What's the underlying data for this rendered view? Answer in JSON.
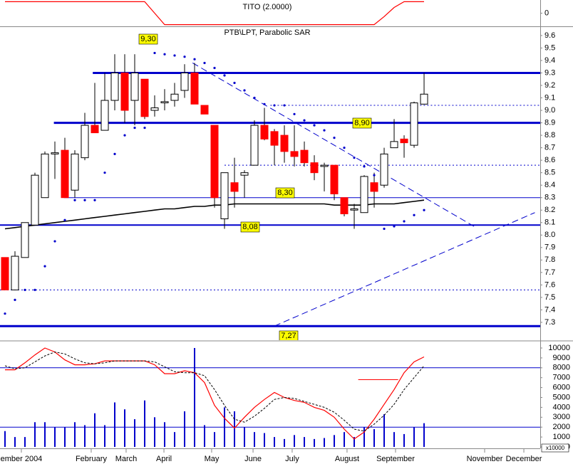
{
  "chart_data": [
    {
      "type": "line",
      "title": "TITO (2.0000)",
      "color": "#ff0000",
      "values": [
        1,
        1,
        1,
        1,
        1,
        1,
        1,
        1,
        1,
        1,
        1,
        1,
        1,
        1,
        1,
        0,
        -1,
        -1,
        -1,
        -1,
        -1,
        -1,
        -1,
        -1,
        -1,
        -1,
        -1,
        -1,
        -1,
        -1,
        -1,
        -1,
        -1,
        -1,
        -1,
        -1,
        -1,
        -1,
        -0.3,
        0.5,
        1,
        1,
        1
      ],
      "ylim": [
        -1.15,
        1.15
      ],
      "yticks": [
        0
      ]
    },
    {
      "type": "candlestick",
      "title": "PTB\\LPT, Parabolic SAR",
      "open": [
        7.82,
        7.56,
        7.82,
        8.08,
        8.3,
        8.65,
        8.68,
        8.36,
        8.62,
        8.88,
        8.84,
        9.08,
        9.3,
        9.08,
        9.25,
        9.0,
        9.06,
        9.08,
        9.16,
        9.3,
        9.04,
        8.88,
        8.13,
        8.42,
        8.48,
        8.56,
        8.88,
        8.83,
        8.8,
        8.67,
        8.68,
        8.58,
        8.55,
        8.56,
        8.3,
        8.2,
        8.18,
        8.42,
        8.4,
        8.7,
        8.77,
        8.72,
        9.05
      ],
      "high": [
        7.82,
        7.87,
        8.1,
        8.5,
        8.67,
        8.75,
        8.78,
        8.68,
        8.98,
        9.22,
        9.3,
        9.45,
        9.45,
        9.45,
        9.25,
        9.12,
        9.17,
        9.22,
        9.37,
        9.38,
        9.04,
        8.88,
        8.5,
        8.62,
        8.52,
        8.92,
        9.02,
        8.85,
        8.88,
        8.88,
        8.75,
        8.64,
        8.58,
        8.56,
        8.3,
        8.25,
        8.48,
        8.5,
        8.7,
        8.93,
        8.8,
        9.07,
        9.3
      ],
      "low": [
        7.56,
        7.56,
        7.82,
        8.08,
        8.3,
        8.45,
        8.3,
        8.3,
        8.6,
        8.82,
        8.84,
        9.0,
        8.9,
        8.88,
        8.93,
        8.95,
        9.0,
        9.03,
        9.1,
        9.05,
        8.97,
        8.22,
        8.05,
        8.22,
        8.3,
        8.56,
        8.76,
        8.56,
        8.58,
        8.55,
        8.55,
        8.44,
        8.35,
        8.28,
        8.15,
        8.05,
        8.18,
        8.22,
        8.38,
        8.7,
        8.62,
        8.7,
        9.05
      ],
      "close": [
        7.56,
        7.83,
        8.1,
        8.48,
        8.65,
        8.66,
        8.3,
        8.65,
        8.88,
        8.82,
        9.08,
        9.3,
        9.0,
        9.3,
        8.95,
        9.02,
        9.07,
        9.13,
        9.3,
        9.05,
        8.97,
        8.3,
        8.5,
        8.35,
        8.5,
        8.88,
        8.77,
        8.72,
        8.67,
        8.63,
        8.58,
        8.5,
        8.56,
        8.33,
        8.17,
        8.21,
        8.47,
        8.35,
        8.65,
        8.75,
        8.74,
        9.06,
        9.13
      ],
      "up_color": "#ffffff",
      "down_color": "#ff0000",
      "ma": [
        8.05,
        8.06,
        8.07,
        8.08,
        8.09,
        8.1,
        8.11,
        8.12,
        8.13,
        8.14,
        8.15,
        8.16,
        8.17,
        8.18,
        8.19,
        8.2,
        8.21,
        8.21,
        8.22,
        8.23,
        8.23,
        8.24,
        8.24,
        8.25,
        8.25,
        8.25,
        8.25,
        8.25,
        8.25,
        8.25,
        8.25,
        8.25,
        8.25,
        8.24,
        8.24,
        8.24,
        8.24,
        8.25,
        8.25,
        8.25,
        8.26,
        8.27,
        8.28
      ],
      "ma_color": "#000000",
      "sar": [
        7.37,
        7.48,
        7.56,
        7.56,
        7.75,
        7.95,
        8.12,
        8.28,
        8.28,
        8.28,
        8.5,
        8.65,
        8.8,
        8.86,
        8.86,
        9.46,
        9.45,
        9.44,
        9.43,
        9.41,
        9.38,
        9.34,
        9.28,
        9.22,
        9.16,
        9.1,
        9.05,
        9.04,
        9.04,
        8.97,
        8.92,
        8.88,
        8.84,
        8.78,
        8.7,
        8.62,
        8.55,
        8.48,
        8.05,
        8.07,
        8.11,
        8.16,
        8.2
      ],
      "sar_color": "#0000cc",
      "levels": [
        {
          "value": 9.3,
          "label": "9,30",
          "style": "thick",
          "start": 8.8
        },
        {
          "value": 8.9,
          "label": "8,90",
          "style": "thick",
          "start": 4.9
        },
        {
          "value": 8.3,
          "label": "8,30",
          "style": "thin",
          "start": 5.9
        },
        {
          "value": 8.08,
          "label": "8,08",
          "style": "medium",
          "start": -0.5
        },
        {
          "value": 7.27,
          "label": "7,27",
          "style": "thick",
          "start": -0.5
        },
        {
          "value": 9.04,
          "style": "dotted",
          "start": 26.6
        },
        {
          "value": 8.56,
          "style": "dotted",
          "start": 22.0
        },
        {
          "value": 7.56,
          "style": "dotted",
          "start": -0.5
        }
      ],
      "level_color": "#0000cc",
      "trendlines": [
        {
          "x": [
            18.8,
            47.0
          ],
          "y": [
            9.38,
            8.07
          ]
        },
        {
          "x": [
            27.0,
            53.1
          ],
          "y": [
            7.27,
            8.18
          ]
        }
      ],
      "ylim": [
        7.157,
        9.668
      ],
      "yticks": [
        9.6,
        9.5,
        9.4,
        9.3,
        9.2,
        9.1,
        {
          "value": 9,
          "label": "9.0"
        },
        8.9,
        8.8,
        8.7,
        8.6,
        8.5,
        8.4,
        8.3,
        8.2,
        8.1,
        {
          "value": 8,
          "label": "8.0"
        },
        7.9,
        7.8,
        7.7,
        7.6,
        7.5,
        7.4,
        7.3
      ]
    },
    {
      "type": "bar",
      "unit_label": "x10000",
      "series": [
        {
          "type": "bar",
          "color": "#0000cc",
          "values": [
            1600,
            1000,
            1000,
            2500,
            2500,
            2000,
            2000,
            2500,
            2200,
            3400,
            2200,
            4500,
            3800,
            2800,
            4700,
            3000,
            2500,
            1500,
            3600,
            10000,
            2200,
            1500,
            4000,
            3600,
            2000,
            1500,
            1400,
            1000,
            800,
            1200,
            1000,
            800,
            900,
            1200,
            1500,
            1000,
            2000,
            1800,
            3300,
            1500,
            1300,
            2000,
            2400
          ]
        },
        {
          "type": "line",
          "color": "#ff0000",
          "values": [
            7800,
            7800,
            8500,
            9300,
            10000,
            9600,
            8800,
            8300,
            8300,
            8400,
            8700,
            8700,
            8700,
            8700,
            8700,
            8300,
            7400,
            7400,
            7700,
            7500,
            6500,
            4200,
            2900,
            1900,
            3000,
            4000,
            4800,
            5500,
            5000,
            4700,
            4500,
            4000,
            3700,
            3000,
            1800,
            800,
            1500,
            2800,
            4300,
            5800,
            7500,
            8600,
            9100
          ]
        },
        {
          "type": "line",
          "color": "#000000",
          "dash": true,
          "values": [
            8200,
            7900,
            8000,
            8600,
            9200,
            9600,
            9400,
            8900,
            8500,
            8400,
            8500,
            8700,
            8700,
            8700,
            8700,
            8600,
            8100,
            7600,
            7500,
            7500,
            7200,
            5800,
            4200,
            2800,
            2500,
            3100,
            3900,
            4800,
            5000,
            4900,
            4600,
            4300,
            4000,
            3500,
            2700,
            1800,
            1600,
            2300,
            3200,
            4300,
            5800,
            7000,
            8200
          ]
        }
      ],
      "levels": [
        8000,
        2000
      ],
      "level_color": "#0000cc",
      "segments": [
        {
          "value": 6800,
          "x": [
            35.4,
            39.4
          ],
          "color": "#ff0000"
        }
      ],
      "ylim": [
        -144,
        10647
      ],
      "yticks": [
        0,
        1000,
        2000,
        3000,
        4000,
        5000,
        6000,
        7000,
        8000,
        9000,
        10000
      ],
      "xlim": [
        -0.5,
        53.64
      ],
      "xticks": [
        {
          "value": 1.64,
          "label": "ember 2004"
        },
        {
          "value": 8.64,
          "label": "February"
        },
        {
          "value": 12.14,
          "label": "March"
        },
        {
          "value": 15.93,
          "label": "April"
        },
        {
          "value": 20.71,
          "label": "May"
        },
        {
          "value": 24.86,
          "label": "June"
        },
        {
          "value": 28.78,
          "label": "July"
        },
        {
          "value": 34.28,
          "label": "August"
        },
        {
          "value": 39.14,
          "label": "September"
        },
        {
          "value": 48.07,
          "label": "November"
        },
        {
          "value": 52.0,
          "label": "December"
        }
      ]
    }
  ]
}
